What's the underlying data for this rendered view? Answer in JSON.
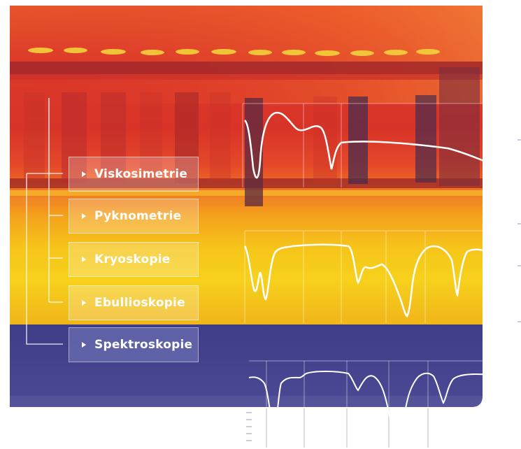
{
  "labels": {
    "viskosimetrie": "Viskosimetrie",
    "pyknometrie": "Pyknometrie",
    "kryoskopie": "Kryoskopie",
    "ebullioskopie": "Ebullioskopie",
    "spektroskopie": "Spektroskopie"
  },
  "colors": {
    "upper_red": "#d8392c",
    "mid_orange": "#ee6a1f",
    "yellow": "#f6c81b",
    "blue_band": "#3e3b86",
    "spectrum_blue": "#5a5aa0"
  }
}
